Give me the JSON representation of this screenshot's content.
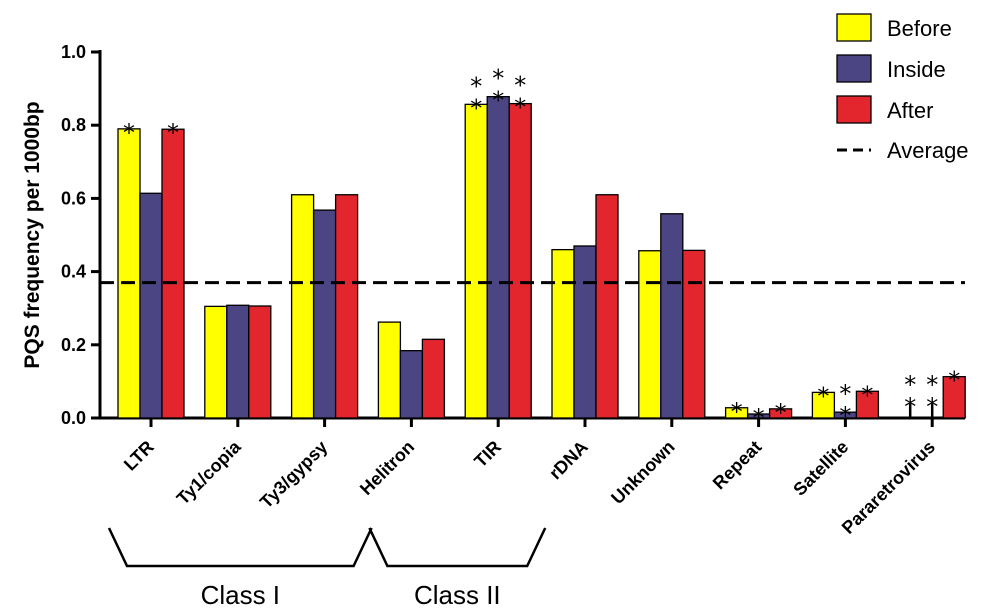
{
  "chart_data": {
    "type": "bar",
    "title": "",
    "xlabel": "",
    "ylabel": "PQS frequency per 1000bp",
    "ylim": [
      0,
      1.0
    ],
    "yticks": [
      "0.0",
      "0.2",
      "0.4",
      "0.6",
      "0.8",
      "1.0"
    ],
    "categories": [
      "LTR",
      "Ty1/copia",
      "Ty3/gypsy",
      "Helitron",
      "TIR",
      "rDNA",
      "Unknown",
      "Repeat",
      "Satellite",
      "Pararetrovirus"
    ],
    "series": [
      {
        "name": "Before",
        "color": "#FFFF00",
        "values": [
          0.79,
          0.305,
          0.61,
          0.262,
          0.857,
          0.46,
          0.457,
          0.028,
          0.07,
          0.0
        ]
      },
      {
        "name": "Inside",
        "color": "#4B4583",
        "values": [
          0.614,
          0.308,
          0.568,
          0.184,
          0.878,
          0.47,
          0.558,
          0.011,
          0.016,
          0.0
        ]
      },
      {
        "name": "After",
        "color": "#E3262D",
        "values": [
          0.789,
          0.306,
          0.61,
          0.215,
          0.859,
          0.61,
          0.458,
          0.025,
          0.073,
          0.113
        ]
      }
    ],
    "average": {
      "name": "Average",
      "value": 0.37
    },
    "significance": [
      {
        "category": "LTR",
        "marks": [
          "*",
          "",
          "*"
        ]
      },
      {
        "category": "TIR",
        "marks": [
          "**",
          "**",
          "**"
        ]
      },
      {
        "category": "Repeat",
        "marks": [
          "*",
          "*",
          "*"
        ]
      },
      {
        "category": "Satellite",
        "marks": [
          "*",
          "**",
          "*"
        ]
      },
      {
        "category": "Pararetrovirus",
        "marks": [
          "**",
          "**",
          "*"
        ]
      }
    ],
    "groups": [
      {
        "label": "Class I",
        "categories": [
          "LTR",
          "Ty1/copia",
          "Ty3/gypsy"
        ]
      },
      {
        "label": "Class II",
        "categories": [
          "Helitron",
          "TIR"
        ]
      }
    ],
    "legend_position": "top-right",
    "grid": false
  }
}
